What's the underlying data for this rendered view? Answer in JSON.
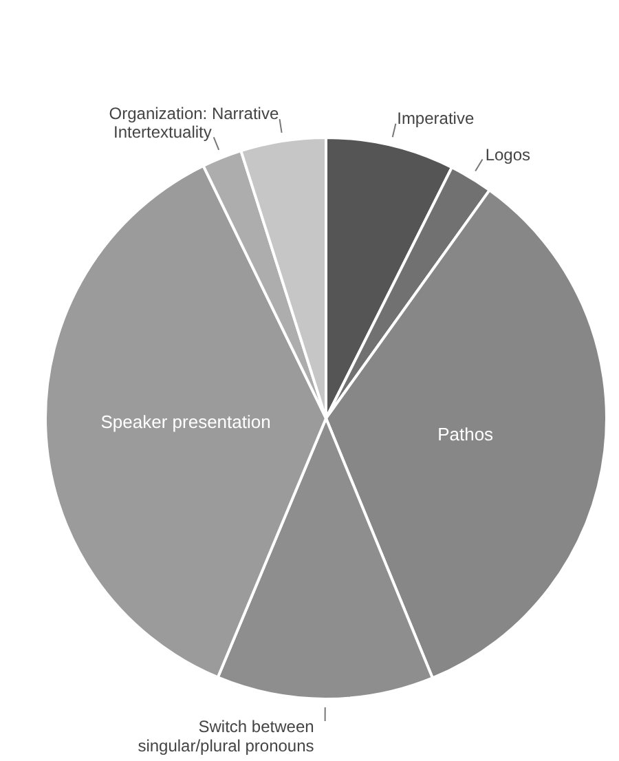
{
  "chart_data": {
    "type": "pie",
    "categories": [
      "Imperative",
      "Logos",
      "Pathos",
      "Switch between\nsingular/plural pronouns",
      "Speaker presentation",
      "Intertextuality",
      "Organization: Narrative"
    ],
    "values": [
      7.4,
      2.5,
      33.9,
      12.5,
      36.5,
      2.3,
      4.9
    ],
    "colors": [
      "#555555",
      "#717171",
      "#878787",
      "#8e8e8e",
      "#9b9b9b",
      "#adadad",
      "#c6c6c6"
    ]
  }
}
